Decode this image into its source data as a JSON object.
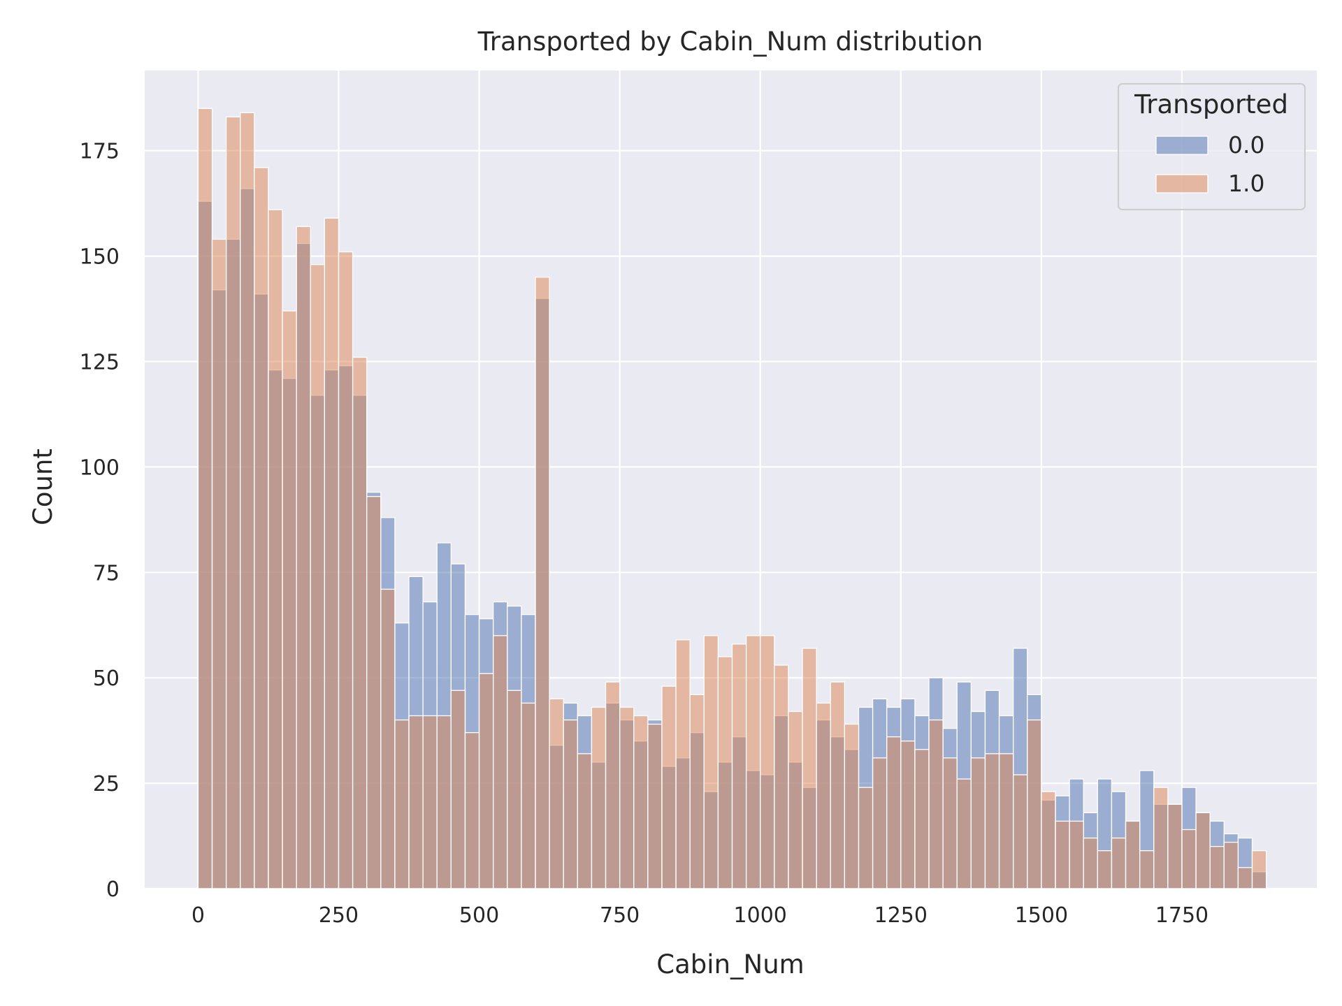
{
  "chart_data": {
    "type": "bar",
    "title": "Transported by Cabin_Num distribution",
    "xlabel": "Cabin_Num",
    "ylabel": "Count",
    "xlim": [
      -95,
      1990
    ],
    "ylim": [
      0,
      194
    ],
    "xticks": [
      0,
      250,
      500,
      750,
      1000,
      1250,
      1500,
      1750
    ],
    "yticks": [
      0,
      25,
      50,
      75,
      100,
      125,
      150,
      175
    ],
    "grid": true,
    "legend": {
      "title": "Transported",
      "position": "top-right"
    },
    "bin_start": 0,
    "bin_width": 25,
    "series": [
      {
        "name": "0.0",
        "color": "#4c72b0",
        "values": [
          163,
          142,
          154,
          166,
          141,
          123,
          121,
          153,
          117,
          123,
          124,
          117,
          94,
          88,
          63,
          74,
          68,
          82,
          77,
          65,
          64,
          68,
          67,
          65,
          140,
          34,
          44,
          41,
          30,
          44,
          40,
          35,
          40,
          29,
          31,
          37,
          23,
          30,
          36,
          28,
          27,
          41,
          30,
          24,
          40,
          36,
          33,
          43,
          45,
          43,
          45,
          41,
          50,
          38,
          49,
          42,
          47,
          41,
          57,
          46,
          21,
          22,
          26,
          18,
          26,
          23,
          16,
          28,
          20,
          20,
          24,
          18,
          16,
          13,
          12,
          4
        ]
      },
      {
        "name": "1.0",
        "color": "#dd8452",
        "values": [
          185,
          154,
          183,
          184,
          171,
          161,
          137,
          157,
          148,
          159,
          151,
          126,
          93,
          71,
          40,
          41,
          41,
          41,
          47,
          37,
          51,
          60,
          47,
          44,
          145,
          45,
          40,
          32,
          43,
          49,
          43,
          41,
          39,
          48,
          59,
          46,
          60,
          55,
          58,
          60,
          60,
          53,
          42,
          57,
          44,
          49,
          39,
          24,
          31,
          36,
          35,
          33,
          40,
          31,
          26,
          31,
          32,
          32,
          27,
          40,
          23,
          16,
          16,
          12,
          9,
          12,
          16,
          9,
          24,
          20,
          14,
          18,
          10,
          11,
          5,
          9
        ]
      }
    ]
  }
}
